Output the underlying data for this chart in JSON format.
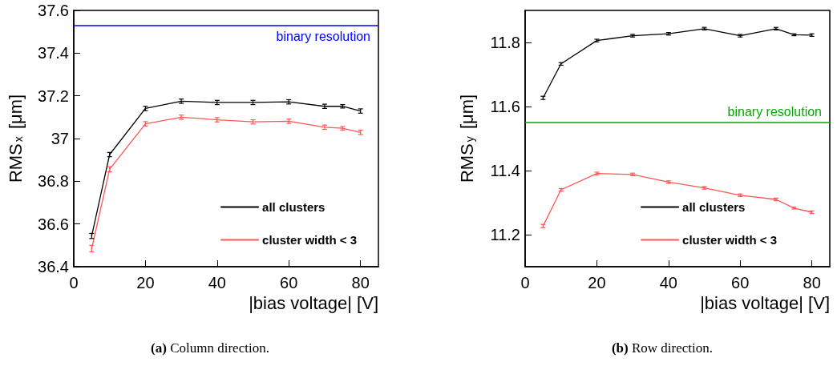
{
  "chart_data": [
    {
      "type": "line",
      "xlabel": "|bias voltage| [V]",
      "ylabel": "RMS$_{x}$ [μm]",
      "x": [
        5,
        10,
        20,
        30,
        40,
        50,
        60,
        70,
        75,
        80
      ],
      "series": [
        {
          "name": "all clusters",
          "color": "#000000",
          "values": [
            36.544,
            36.925,
            37.141,
            37.175,
            37.169,
            37.169,
            37.172,
            37.151,
            37.151,
            37.129
          ],
          "errors": [
            0.012,
            0.01,
            0.01,
            0.01,
            0.01,
            0.01,
            0.01,
            0.01,
            0.008,
            0.01
          ]
        },
        {
          "name": "cluster width < 3",
          "color": "#ff5555",
          "values": [
            36.485,
            36.856,
            37.069,
            37.1,
            37.088,
            37.078,
            37.081,
            37.053,
            37.048,
            37.029
          ],
          "errors": [
            0.015,
            0.012,
            0.01,
            0.01,
            0.01,
            0.01,
            0.01,
            0.01,
            0.008,
            0.01
          ]
        }
      ],
      "xlim": [
        0,
        85
      ],
      "xticks": [
        0,
        20,
        40,
        60,
        80
      ],
      "ylim": [
        36.4,
        37.6
      ],
      "yticks": [
        36.4,
        36.6,
        36.8,
        37,
        37.2,
        37.4,
        37.6
      ],
      "ref_lines": [
        {
          "axis": "y",
          "value": 37.53,
          "label": "binary resolution",
          "color": "#0000ff"
        }
      ],
      "legend": "bottom right",
      "marker": "none",
      "grid": false,
      "annotations": [
        "(a) Column direction."
      ]
    },
    {
      "type": "line",
      "xlabel": "|bias voltage| [V]",
      "ylabel": "RMS$_{y}$ [μm]",
      "x": [
        5,
        10,
        20,
        30,
        40,
        50,
        60,
        70,
        75,
        80
      ],
      "series": [
        {
          "name": "all clusters",
          "color": "#000000",
          "values": [
            11.627,
            11.733,
            11.806,
            11.821,
            11.827,
            11.843,
            11.821,
            11.843,
            11.824,
            11.823
          ],
          "errors": [
            0.005,
            0.004,
            0.004,
            0.004,
            0.004,
            0.004,
            0.004,
            0.004,
            0.003,
            0.004
          ]
        },
        {
          "name": "cluster width < 3",
          "color": "#ff5555",
          "values": [
            11.227,
            11.34,
            11.391,
            11.388,
            11.364,
            11.346,
            11.323,
            11.31,
            11.283,
            11.27
          ],
          "errors": [
            0.005,
            0.004,
            0.004,
            0.004,
            0.004,
            0.004,
            0.004,
            0.004,
            0.003,
            0.004
          ]
        }
      ],
      "xlim": [
        0,
        85
      ],
      "xticks": [
        0,
        20,
        40,
        60,
        80
      ],
      "ylim": [
        11.1,
        11.9
      ],
      "yticks": [
        11.2,
        11.4,
        11.6,
        11.8
      ],
      "ref_lines": [
        {
          "axis": "y",
          "value": 11.55,
          "label": "binary resolution",
          "color": "#00aa00"
        }
      ],
      "legend": "bottom right",
      "marker": "none",
      "grid": false,
      "annotations": [
        "(b) Row direction."
      ]
    }
  ]
}
